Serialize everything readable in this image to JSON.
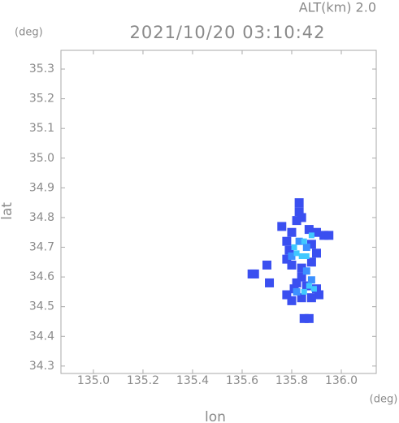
{
  "chart_data": {
    "type": "scatter",
    "title": "2021/10/20 03:10:42",
    "subtitle": "ALT(km) 2.0",
    "x_label": "lon",
    "y_label": "lat",
    "x_unit": "(deg)",
    "y_unit": "(deg)",
    "xlim": [
      134.869,
      136.141
    ],
    "ylim": [
      34.275,
      35.363
    ],
    "xticks": [
      {
        "value": 135,
        "label": "135.0"
      },
      135.2,
      135.4,
      135.6,
      135.8,
      {
        "value": 136,
        "label": "136.0"
      }
    ],
    "yticks": [
      34.3,
      34.4,
      34.5,
      34.6,
      34.7,
      34.8,
      34.9,
      {
        "value": 35,
        "label": "35.0"
      },
      35.1,
      35.2,
      35.3
    ],
    "series": [
      {
        "color": "#3a4ff0",
        "x": [
          135.83,
          135.83,
          135.82,
          135.84,
          135.87,
          135.9,
          135.93,
          135.95,
          135.8,
          135.78,
          135.79,
          135.78,
          135.8,
          135.84,
          135.88,
          135.9,
          135.88,
          135.84,
          135.82,
          135.86,
          135.9,
          135.91,
          135.88,
          135.84,
          135.8,
          135.78,
          135.81,
          135.65,
          135.64,
          135.71,
          135.7,
          135.85,
          135.87,
          135.76
        ],
        "y": [
          34.85,
          34.82,
          34.79,
          34.8,
          34.76,
          34.75,
          34.74,
          34.74,
          34.75,
          34.72,
          34.69,
          34.66,
          34.64,
          34.63,
          34.65,
          34.68,
          34.71,
          34.6,
          34.58,
          34.57,
          34.56,
          34.54,
          34.53,
          34.53,
          34.52,
          34.54,
          34.56,
          34.61,
          34.61,
          34.58,
          34.64,
          34.46,
          34.46,
          34.77
        ]
      },
      {
        "color": "#3c90ff",
        "x": [
          135.83,
          135.8,
          135.86,
          135.82,
          135.88,
          135.86
        ],
        "y": [
          34.72,
          34.67,
          34.7,
          34.55,
          34.59,
          34.62
        ]
      },
      {
        "color": "#40c8ff",
        "x": [
          135.81,
          135.82,
          135.84,
          135.86,
          135.85,
          135.88,
          135.87,
          135.85,
          135.89
        ],
        "y": [
          34.7,
          34.68,
          34.67,
          34.67,
          34.72,
          34.74,
          34.57,
          34.55,
          34.56
        ]
      }
    ]
  }
}
